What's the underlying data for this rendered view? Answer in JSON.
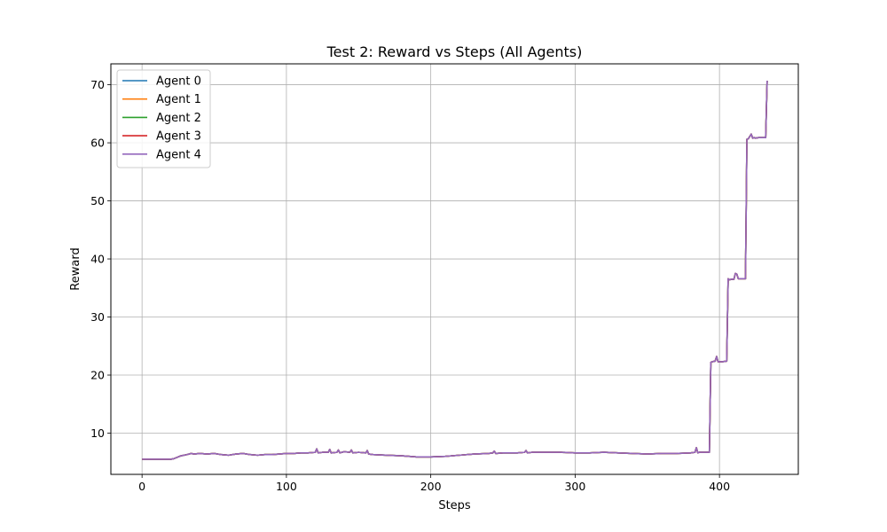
{
  "chart_data": {
    "type": "line",
    "title": "Test 2: Reward vs Steps (All Agents)",
    "xlabel": "Steps",
    "ylabel": "Reward",
    "xlim": [
      -21.6,
      454.6
    ],
    "ylim": [
      2.9,
      73.6
    ],
    "xticks": [
      0,
      100,
      200,
      300,
      400
    ],
    "yticks": [
      10,
      20,
      30,
      40,
      50,
      60,
      70
    ],
    "grid": true,
    "legend_position": "top-left",
    "x": [
      0,
      20,
      22,
      27,
      31,
      34,
      36,
      40,
      45,
      50,
      55,
      60,
      65,
      70,
      75,
      80,
      85,
      90,
      95,
      100,
      105,
      110,
      115,
      120,
      121,
      122,
      125,
      129,
      130,
      131,
      135,
      136,
      137,
      140,
      144,
      145,
      146,
      150,
      155,
      156,
      157,
      160,
      170,
      180,
      190,
      200,
      210,
      220,
      230,
      240,
      243,
      244,
      245,
      250,
      260,
      265,
      266,
      267,
      270,
      280,
      290,
      300,
      310,
      320,
      330,
      340,
      350,
      360,
      370,
      380,
      383,
      384,
      385,
      386,
      390,
      393,
      394,
      395,
      397,
      398,
      399,
      400,
      402,
      405,
      406,
      407,
      408,
      410,
      411,
      412,
      413,
      414,
      418,
      419,
      420,
      422,
      423,
      424,
      425,
      427,
      430,
      432,
      433
    ],
    "series": [
      {
        "name": "Agent 0",
        "color": "#1f77b4",
        "y": [
          5.5,
          5.5,
          5.6,
          6.1,
          6.3,
          6.5,
          6.4,
          6.5,
          6.4,
          6.5,
          6.3,
          6.2,
          6.4,
          6.5,
          6.3,
          6.2,
          6.3,
          6.3,
          6.4,
          6.5,
          6.5,
          6.6,
          6.6,
          6.7,
          7.3,
          6.6,
          6.7,
          6.7,
          7.2,
          6.6,
          6.7,
          7.1,
          6.6,
          6.8,
          6.7,
          7.1,
          6.6,
          6.7,
          6.6,
          7.0,
          6.4,
          6.3,
          6.2,
          6.1,
          5.9,
          5.9,
          6.0,
          6.2,
          6.4,
          6.5,
          6.6,
          6.9,
          6.5,
          6.6,
          6.6,
          6.7,
          7.0,
          6.6,
          6.7,
          6.7,
          6.7,
          6.6,
          6.6,
          6.7,
          6.6,
          6.5,
          6.4,
          6.5,
          6.5,
          6.6,
          6.7,
          7.5,
          6.6,
          6.7,
          6.7,
          6.7,
          22.2,
          22.3,
          22.4,
          23.2,
          22.3,
          22.3,
          22.3,
          22.4,
          36.6,
          36.4,
          36.5,
          36.5,
          37.5,
          37.4,
          36.6,
          36.6,
          36.6,
          60.6,
          60.7,
          61.5,
          60.8,
          60.9,
          60.8,
          60.9,
          60.9,
          60.9,
          70.7
        ]
      },
      {
        "name": "Agent 1",
        "color": "#ff7f0e",
        "y": [
          5.5,
          5.5,
          5.6,
          6.1,
          6.3,
          6.5,
          6.4,
          6.5,
          6.4,
          6.5,
          6.3,
          6.2,
          6.4,
          6.5,
          6.3,
          6.2,
          6.3,
          6.3,
          6.4,
          6.5,
          6.5,
          6.6,
          6.6,
          6.7,
          7.3,
          6.6,
          6.7,
          6.7,
          7.2,
          6.6,
          6.7,
          7.1,
          6.6,
          6.8,
          6.7,
          7.1,
          6.6,
          6.7,
          6.6,
          7.0,
          6.4,
          6.3,
          6.2,
          6.1,
          5.9,
          5.9,
          6.0,
          6.2,
          6.4,
          6.5,
          6.6,
          6.9,
          6.5,
          6.6,
          6.6,
          6.7,
          7.0,
          6.6,
          6.7,
          6.7,
          6.7,
          6.6,
          6.6,
          6.7,
          6.6,
          6.5,
          6.4,
          6.5,
          6.5,
          6.6,
          6.7,
          7.5,
          6.6,
          6.7,
          6.7,
          6.7,
          22.2,
          22.3,
          22.4,
          23.2,
          22.3,
          22.3,
          22.3,
          22.4,
          36.6,
          36.4,
          36.5,
          36.5,
          37.5,
          37.4,
          36.6,
          36.6,
          36.6,
          60.6,
          60.7,
          61.5,
          60.8,
          60.9,
          60.8,
          60.9,
          60.9,
          60.9,
          70.7
        ]
      },
      {
        "name": "Agent 2",
        "color": "#2ca02c",
        "y": [
          5.5,
          5.5,
          5.6,
          6.1,
          6.3,
          6.5,
          6.4,
          6.5,
          6.4,
          6.5,
          6.3,
          6.2,
          6.4,
          6.5,
          6.3,
          6.2,
          6.3,
          6.3,
          6.4,
          6.5,
          6.5,
          6.6,
          6.6,
          6.7,
          7.3,
          6.6,
          6.7,
          6.7,
          7.2,
          6.6,
          6.7,
          7.1,
          6.6,
          6.8,
          6.7,
          7.1,
          6.6,
          6.7,
          6.6,
          7.0,
          6.4,
          6.3,
          6.2,
          6.1,
          5.9,
          5.9,
          6.0,
          6.2,
          6.4,
          6.5,
          6.6,
          6.9,
          6.5,
          6.6,
          6.6,
          6.7,
          7.0,
          6.6,
          6.7,
          6.7,
          6.7,
          6.6,
          6.6,
          6.7,
          6.6,
          6.5,
          6.4,
          6.5,
          6.5,
          6.6,
          6.7,
          7.5,
          6.6,
          6.7,
          6.7,
          6.7,
          22.2,
          22.3,
          22.4,
          23.2,
          22.3,
          22.3,
          22.3,
          22.4,
          36.6,
          36.4,
          36.5,
          36.5,
          37.5,
          37.4,
          36.6,
          36.6,
          36.6,
          60.6,
          60.7,
          61.5,
          60.8,
          60.9,
          60.8,
          60.9,
          60.9,
          60.9,
          70.7
        ]
      },
      {
        "name": "Agent 3",
        "color": "#d62728",
        "y": [
          5.5,
          5.5,
          5.6,
          6.1,
          6.3,
          6.5,
          6.4,
          6.5,
          6.4,
          6.5,
          6.3,
          6.2,
          6.4,
          6.5,
          6.3,
          6.2,
          6.3,
          6.3,
          6.4,
          6.5,
          6.5,
          6.6,
          6.6,
          6.7,
          7.3,
          6.6,
          6.7,
          6.7,
          7.2,
          6.6,
          6.7,
          7.1,
          6.6,
          6.8,
          6.7,
          7.1,
          6.6,
          6.7,
          6.6,
          7.0,
          6.4,
          6.3,
          6.2,
          6.1,
          5.9,
          5.9,
          6.0,
          6.2,
          6.4,
          6.5,
          6.6,
          6.9,
          6.5,
          6.6,
          6.6,
          6.7,
          7.0,
          6.6,
          6.7,
          6.7,
          6.7,
          6.6,
          6.6,
          6.7,
          6.6,
          6.5,
          6.4,
          6.5,
          6.5,
          6.6,
          6.7,
          7.5,
          6.6,
          6.7,
          6.7,
          6.7,
          22.2,
          22.3,
          22.4,
          23.2,
          22.3,
          22.3,
          22.3,
          22.4,
          36.6,
          36.4,
          36.5,
          36.5,
          37.5,
          37.4,
          36.6,
          36.6,
          36.6,
          60.6,
          60.7,
          61.5,
          60.8,
          60.9,
          60.8,
          60.9,
          60.9,
          60.9,
          70.7
        ]
      },
      {
        "name": "Agent 4",
        "color": "#9467bd",
        "y": [
          5.5,
          5.5,
          5.6,
          6.1,
          6.3,
          6.5,
          6.4,
          6.5,
          6.4,
          6.5,
          6.3,
          6.2,
          6.4,
          6.5,
          6.3,
          6.2,
          6.3,
          6.3,
          6.4,
          6.5,
          6.5,
          6.6,
          6.6,
          6.7,
          7.3,
          6.6,
          6.7,
          6.7,
          7.2,
          6.6,
          6.7,
          7.1,
          6.6,
          6.8,
          6.7,
          7.1,
          6.6,
          6.7,
          6.6,
          7.0,
          6.4,
          6.3,
          6.2,
          6.1,
          5.9,
          5.9,
          6.0,
          6.2,
          6.4,
          6.5,
          6.6,
          6.9,
          6.5,
          6.6,
          6.6,
          6.7,
          7.0,
          6.6,
          6.7,
          6.7,
          6.7,
          6.6,
          6.6,
          6.7,
          6.6,
          6.5,
          6.4,
          6.5,
          6.5,
          6.6,
          6.7,
          7.5,
          6.6,
          6.7,
          6.7,
          6.7,
          22.2,
          22.3,
          22.4,
          23.2,
          22.3,
          22.3,
          22.3,
          22.4,
          36.6,
          36.4,
          36.5,
          36.5,
          37.5,
          37.4,
          36.6,
          36.6,
          36.6,
          60.6,
          60.7,
          61.5,
          60.8,
          60.9,
          60.8,
          60.9,
          60.9,
          60.9,
          70.7
        ]
      }
    ]
  }
}
